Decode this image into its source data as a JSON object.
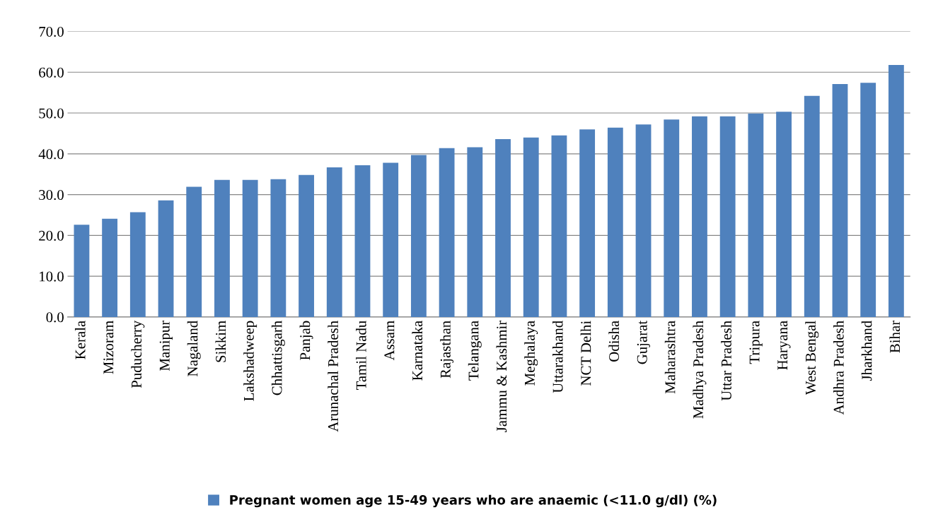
{
  "chart_data": {
    "type": "bar",
    "categories": [
      "Kerala",
      "Mizoram",
      "Puducherry",
      "Manipur",
      "Nagaland",
      "Sikkim",
      "Lakshadweep",
      "Chhattisgarh",
      "Panjab",
      "Arunachal Pradesh",
      "Tamil Nadu",
      "Assam",
      "Karnataka",
      "Rajasthan",
      "Telangana",
      "Jammu & Kashmir",
      "Meghalaya",
      "Uttarakhand",
      "NCT Delhi",
      "Odisha",
      "Gujarat",
      "Maharashtra",
      "Madhya Pradesh",
      "Uttar Pradesh",
      "Tripura",
      "Haryana",
      "West Bengal",
      "Andhra Pradesh",
      "Jharkhand",
      "Bihar"
    ],
    "series": [
      {
        "name": "Pregnant women age 15-49 years who are anaemic (<11.0 g/dl) (%)",
        "color": "#4f81bd",
        "values": [
          22.6,
          24.1,
          25.7,
          28.6,
          31.9,
          33.6,
          33.6,
          33.8,
          34.8,
          36.7,
          37.2,
          37.8,
          39.7,
          41.4,
          41.6,
          43.6,
          44.0,
          44.5,
          46.0,
          46.4,
          47.2,
          48.4,
          49.2,
          49.2,
          49.9,
          50.3,
          54.2,
          57.1,
          57.4,
          61.8
        ]
      }
    ],
    "ylim": [
      0,
      70
    ],
    "yticks": [
      {
        "value": 0,
        "label": "0.0"
      },
      {
        "value": 10,
        "label": "10.0"
      },
      {
        "value": 20,
        "label": "20.0"
      },
      {
        "value": 30,
        "label": "30.0"
      },
      {
        "value": 40,
        "label": "40.0"
      },
      {
        "value": 50,
        "label": "50.0"
      },
      {
        "value": 60,
        "label": "60.0"
      },
      {
        "value": 70,
        "label": "70.0"
      }
    ],
    "grid": "y",
    "legend": "bottom"
  }
}
